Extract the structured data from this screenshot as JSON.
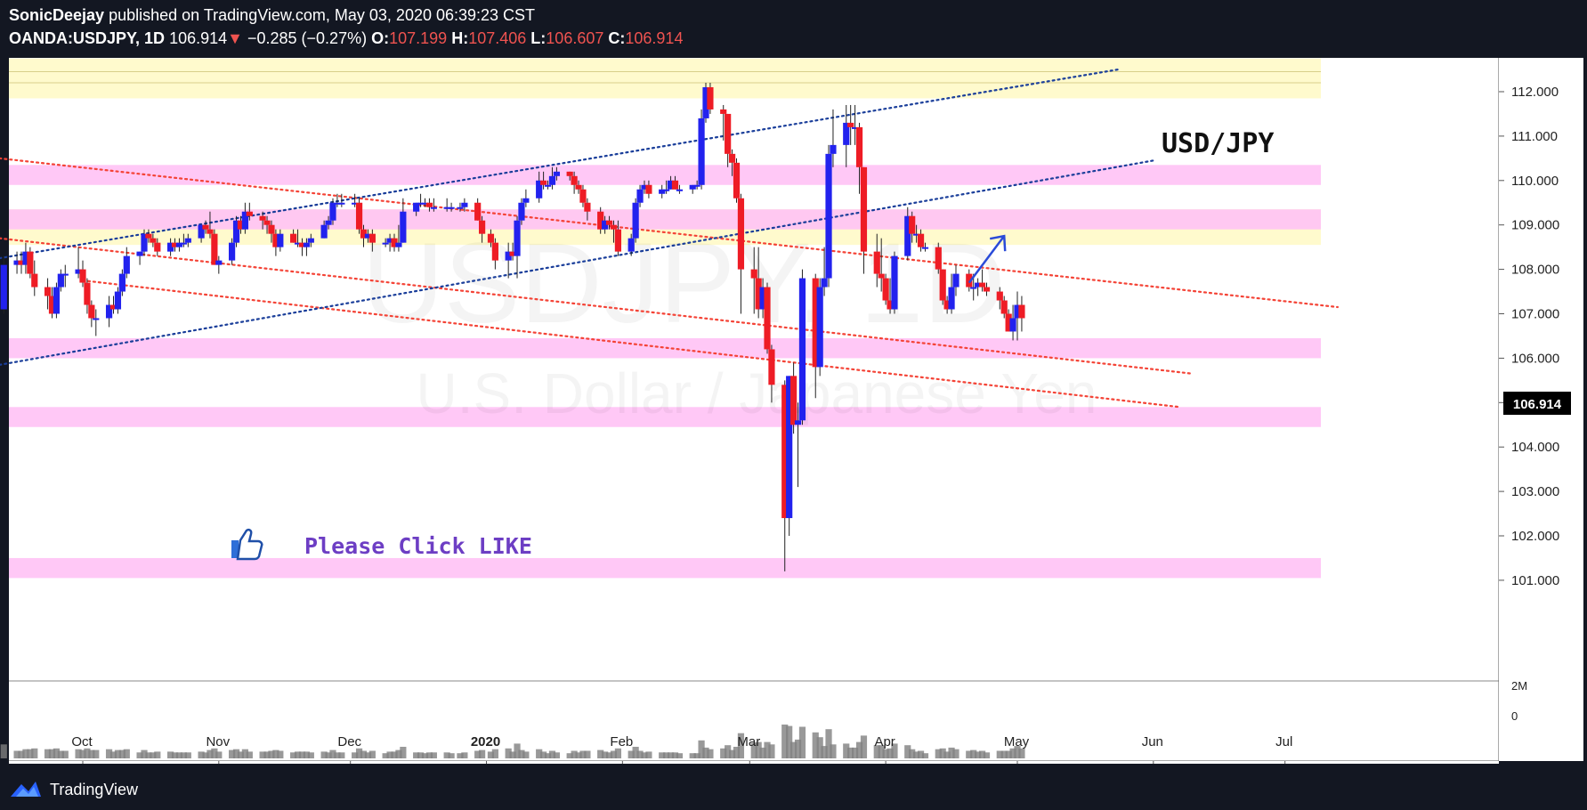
{
  "header": {
    "author": "SonicDeejay",
    "published_text": "published on TradingView.com, May 03, 2020 06:39:23 CST",
    "symbol": "OANDA:USDJPY, 1D",
    "last": "106.914",
    "change_arrow": "▼",
    "change": "−0.285 (−0.27%)",
    "o_label": "O:",
    "o_value": "107.199",
    "h_label": "H:",
    "h_value": "107.406",
    "l_label": "L:",
    "l_value": "106.607",
    "c_label": "C:",
    "c_value": "106.914"
  },
  "annotations": {
    "pair_label": "USD/JPY",
    "like_text": "Please Click LIKE"
  },
  "watermark": {
    "symbol": "USDJPY, 1D",
    "name": "U.S. Dollar / Japanese Yen"
  },
  "footer": {
    "brand": "TradingView"
  },
  "colors": {
    "background": "#131722",
    "chart_bg": "#ffffff",
    "up": "#2222ee",
    "down": "#ee1c25",
    "pink_zone": "#ffc2f5",
    "yellow_zone": "#fff9c4",
    "red_trend": "#f44336",
    "blue_trend": "#1a3e9a",
    "price_tag_bg": "#000000",
    "like_text": "#6d3ec4"
  },
  "chart_data": {
    "type": "candlestick",
    "title": "",
    "price_axis": {
      "ticks": [
        "112.000",
        "111.000",
        "110.000",
        "109.000",
        "108.000",
        "107.000",
        "106.000",
        "105.000",
        "104.000",
        "103.000",
        "102.000",
        "101.000"
      ],
      "range": [
        100.5,
        112.75
      ],
      "last_price_label": "106.914"
    },
    "time_axis": {
      "labels": [
        "Oct",
        "Nov",
        "Dec",
        "2020",
        "Feb",
        "Mar",
        "Apr",
        "May",
        "Jun",
        "Jul"
      ]
    },
    "volume_axis": {
      "labels": [
        "2M",
        "0"
      ]
    },
    "zones": [
      {
        "type": "yellow",
        "from": 111.85,
        "to": 112.75
      },
      {
        "type": "pink",
        "from": 109.9,
        "to": 110.35
      },
      {
        "type": "yellow",
        "from": 108.55,
        "to": 109.35
      },
      {
        "type": "pink",
        "from": 108.9,
        "to": 109.35
      },
      {
        "type": "pink",
        "from": 106.0,
        "to": 106.45
      },
      {
        "type": "pink",
        "from": 104.45,
        "to": 104.9
      },
      {
        "type": "pink",
        "from": 101.05,
        "to": 101.5
      }
    ],
    "trendlines": [
      {
        "color": "red",
        "from": [
          "2019-09-12",
          110.5
        ],
        "to": [
          "2020-07-13",
          107.15
        ]
      },
      {
        "color": "red",
        "from": [
          "2019-09-12",
          108.7
        ],
        "to": [
          "2020-06-10",
          105.65
        ]
      },
      {
        "color": "red",
        "from": [
          "2019-10-01",
          107.75
        ],
        "to": [
          "2020-06-07",
          104.9
        ]
      },
      {
        "color": "blue",
        "from": [
          "2019-09-12",
          108.25
        ],
        "to": [
          "2020-05-24",
          112.5
        ]
      },
      {
        "color": "blue",
        "from": [
          "2019-09-12",
          105.85
        ],
        "to": [
          "2020-06-01",
          110.45
        ]
      }
    ],
    "arrow": {
      "from": [
        "2020-04-20",
        107.7
      ],
      "to": [
        "2020-04-28",
        108.75
      ]
    },
    "candles": [
      [
        "2019-09-13",
        107.1,
        108.3,
        107.0,
        108.1
      ],
      [
        "2019-09-16",
        108.1,
        108.4,
        107.9,
        108.2
      ],
      [
        "2019-09-17",
        108.2,
        108.4,
        107.9,
        108.1
      ],
      [
        "2019-09-18",
        108.1,
        108.6,
        107.9,
        108.4
      ],
      [
        "2019-09-19",
        108.4,
        108.5,
        107.8,
        107.9
      ],
      [
        "2019-09-20",
        107.9,
        108.2,
        107.4,
        107.6
      ],
      [
        "2019-09-23",
        107.6,
        107.8,
        107.1,
        107.4
      ],
      [
        "2019-09-24",
        107.4,
        107.6,
        106.9,
        107.0
      ],
      [
        "2019-09-25",
        107.0,
        107.7,
        106.9,
        107.6
      ],
      [
        "2019-09-26",
        107.6,
        108.0,
        107.5,
        107.9
      ],
      [
        "2019-09-27",
        107.9,
        108.1,
        107.6,
        107.9
      ],
      [
        "2019-09-30",
        107.9,
        108.5,
        107.8,
        108.0
      ],
      [
        "2019-10-01",
        108.0,
        108.2,
        107.6,
        107.7
      ],
      [
        "2019-10-02",
        107.7,
        107.8,
        107.0,
        107.2
      ],
      [
        "2019-10-03",
        107.2,
        107.3,
        106.7,
        106.9
      ],
      [
        "2019-10-04",
        106.9,
        107.1,
        106.5,
        106.9
      ],
      [
        "2019-10-07",
        106.9,
        107.4,
        106.7,
        107.2
      ],
      [
        "2019-10-08",
        107.2,
        107.4,
        107.0,
        107.1
      ],
      [
        "2019-10-09",
        107.1,
        107.6,
        107.0,
        107.5
      ],
      [
        "2019-10-10",
        107.5,
        108.0,
        107.4,
        107.9
      ],
      [
        "2019-10-11",
        107.9,
        108.5,
        107.8,
        108.3
      ],
      [
        "2019-10-14",
        108.3,
        108.4,
        108.1,
        108.4
      ],
      [
        "2019-10-15",
        108.4,
        108.9,
        108.3,
        108.8
      ],
      [
        "2019-10-16",
        108.8,
        108.9,
        108.6,
        108.7
      ],
      [
        "2019-10-17",
        108.7,
        108.8,
        108.5,
        108.6
      ],
      [
        "2019-10-18",
        108.6,
        108.7,
        108.3,
        108.4
      ],
      [
        "2019-10-21",
        108.4,
        108.7,
        108.3,
        108.6
      ],
      [
        "2019-10-22",
        108.6,
        108.7,
        108.4,
        108.5
      ],
      [
        "2019-10-23",
        108.5,
        108.7,
        108.4,
        108.6
      ],
      [
        "2019-10-24",
        108.6,
        108.8,
        108.5,
        108.6
      ],
      [
        "2019-10-25",
        108.6,
        108.8,
        108.5,
        108.7
      ],
      [
        "2019-10-28",
        108.7,
        109.0,
        108.6,
        109.0
      ],
      [
        "2019-10-29",
        109.0,
        109.1,
        108.8,
        108.9
      ],
      [
        "2019-10-30",
        108.9,
        109.3,
        108.7,
        108.8
      ],
      [
        "2019-10-31",
        108.8,
        108.9,
        108.1,
        108.1
      ],
      [
        "2019-11-01",
        108.1,
        108.3,
        107.9,
        108.2
      ],
      [
        "2019-11-04",
        108.2,
        108.7,
        108.1,
        108.6
      ],
      [
        "2019-11-05",
        108.6,
        109.2,
        108.5,
        109.1
      ],
      [
        "2019-11-06",
        109.1,
        109.2,
        108.8,
        108.9
      ],
      [
        "2019-11-07",
        108.9,
        109.5,
        108.8,
        109.3
      ],
      [
        "2019-11-08",
        109.3,
        109.5,
        109.1,
        109.2
      ],
      [
        "2019-11-11",
        109.2,
        109.3,
        108.9,
        109.1
      ],
      [
        "2019-11-12",
        109.1,
        109.2,
        108.8,
        109.0
      ],
      [
        "2019-11-13",
        109.0,
        109.1,
        108.6,
        108.8
      ],
      [
        "2019-11-14",
        108.8,
        108.9,
        108.3,
        108.5
      ],
      [
        "2019-11-15",
        108.5,
        108.9,
        108.4,
        108.8
      ],
      [
        "2019-11-18",
        108.8,
        108.9,
        108.6,
        108.6
      ],
      [
        "2019-11-19",
        108.6,
        108.9,
        108.5,
        108.6
      ],
      [
        "2019-11-20",
        108.6,
        108.7,
        108.3,
        108.5
      ],
      [
        "2019-11-21",
        108.5,
        108.7,
        108.3,
        108.6
      ],
      [
        "2019-11-22",
        108.6,
        108.8,
        108.5,
        108.7
      ],
      [
        "2019-11-25",
        108.7,
        109.1,
        108.7,
        109.0
      ],
      [
        "2019-11-26",
        109.0,
        109.2,
        108.9,
        109.1
      ],
      [
        "2019-11-27",
        109.1,
        109.6,
        109.0,
        109.5
      ],
      [
        "2019-11-28",
        109.5,
        109.7,
        109.4,
        109.5
      ],
      [
        "2019-11-29",
        109.5,
        109.7,
        109.4,
        109.5
      ],
      [
        "2019-12-02",
        109.5,
        109.7,
        109.4,
        109.5
      ],
      [
        "2019-12-03",
        109.5,
        109.6,
        108.8,
        108.9
      ],
      [
        "2019-12-04",
        108.9,
        109.0,
        108.5,
        108.7
      ],
      [
        "2019-12-05",
        108.7,
        108.9,
        108.6,
        108.8
      ],
      [
        "2019-12-06",
        108.8,
        108.9,
        108.4,
        108.6
      ],
      [
        "2019-12-09",
        108.6,
        108.7,
        108.5,
        108.6
      ],
      [
        "2019-12-10",
        108.6,
        108.8,
        108.4,
        108.7
      ],
      [
        "2019-12-11",
        108.7,
        108.8,
        108.4,
        108.5
      ],
      [
        "2019-12-12",
        108.5,
        109.0,
        108.4,
        108.6
      ],
      [
        "2019-12-13",
        108.6,
        109.6,
        108.6,
        109.3
      ],
      [
        "2019-12-16",
        109.3,
        109.5,
        109.2,
        109.5
      ],
      [
        "2019-12-17",
        109.5,
        109.7,
        109.4,
        109.5
      ],
      [
        "2019-12-18",
        109.5,
        109.6,
        109.4,
        109.5
      ],
      [
        "2019-12-19",
        109.5,
        109.6,
        109.3,
        109.4
      ],
      [
        "2019-12-20",
        109.4,
        109.6,
        109.3,
        109.4
      ],
      [
        "2019-12-23",
        109.4,
        109.6,
        109.3,
        109.4
      ],
      [
        "2019-12-24",
        109.4,
        109.5,
        109.3,
        109.4
      ],
      [
        "2019-12-26",
        109.4,
        109.5,
        109.3,
        109.4
      ],
      [
        "2019-12-27",
        109.4,
        109.6,
        109.3,
        109.5
      ],
      [
        "2019-12-30",
        109.5,
        109.6,
        109.1,
        109.1
      ],
      [
        "2019-12-31",
        109.1,
        109.2,
        108.6,
        108.8
      ],
      [
        "2020-01-02",
        108.8,
        108.9,
        108.5,
        108.6
      ],
      [
        "2020-01-03",
        108.6,
        108.7,
        108.0,
        108.2
      ],
      [
        "2020-01-06",
        108.2,
        108.6,
        107.8,
        108.4
      ],
      [
        "2020-01-07",
        108.4,
        108.6,
        108.2,
        108.3
      ],
      [
        "2020-01-08",
        108.3,
        109.2,
        107.8,
        109.1
      ],
      [
        "2020-01-09",
        109.1,
        109.6,
        109.0,
        109.5
      ],
      [
        "2020-01-10",
        109.5,
        109.8,
        109.4,
        109.6
      ],
      [
        "2020-01-13",
        109.6,
        110.2,
        109.5,
        110.0
      ],
      [
        "2020-01-14",
        110.0,
        110.2,
        109.8,
        109.9
      ],
      [
        "2020-01-15",
        109.9,
        110.0,
        109.8,
        109.9
      ],
      [
        "2020-01-16",
        109.9,
        110.3,
        109.8,
        110.1
      ],
      [
        "2020-01-17",
        110.1,
        110.3,
        110.0,
        110.2
      ],
      [
        "2020-01-20",
        110.2,
        110.2,
        110.0,
        110.1
      ],
      [
        "2020-01-21",
        110.1,
        110.2,
        109.7,
        109.9
      ],
      [
        "2020-01-22",
        109.9,
        110.0,
        109.7,
        109.8
      ],
      [
        "2020-01-23",
        109.8,
        109.9,
        109.4,
        109.5
      ],
      [
        "2020-01-24",
        109.5,
        109.6,
        109.1,
        109.3
      ],
      [
        "2020-01-27",
        109.3,
        109.4,
        108.8,
        108.9
      ],
      [
        "2020-01-28",
        108.9,
        109.2,
        108.8,
        109.1
      ],
      [
        "2020-01-29",
        109.1,
        109.2,
        108.9,
        109.0
      ],
      [
        "2020-01-30",
        109.0,
        109.1,
        108.6,
        108.9
      ],
      [
        "2020-01-31",
        108.9,
        109.1,
        108.3,
        108.4
      ],
      [
        "2020-02-03",
        108.4,
        108.8,
        108.3,
        108.7
      ],
      [
        "2020-02-04",
        108.7,
        109.6,
        108.6,
        109.5
      ],
      [
        "2020-02-05",
        109.5,
        109.9,
        109.4,
        109.8
      ],
      [
        "2020-02-06",
        109.8,
        110.0,
        109.7,
        109.9
      ],
      [
        "2020-02-07",
        109.9,
        110.0,
        109.6,
        109.7
      ],
      [
        "2020-02-10",
        109.7,
        109.9,
        109.6,
        109.8
      ],
      [
        "2020-02-11",
        109.8,
        110.0,
        109.7,
        109.8
      ],
      [
        "2020-02-12",
        109.8,
        110.1,
        109.8,
        110.0
      ],
      [
        "2020-02-13",
        110.0,
        110.1,
        109.8,
        109.8
      ],
      [
        "2020-02-14",
        109.8,
        109.9,
        109.7,
        109.8
      ],
      [
        "2020-02-17",
        109.8,
        109.9,
        109.7,
        109.9
      ],
      [
        "2020-02-18",
        109.9,
        110.0,
        109.8,
        109.9
      ],
      [
        "2020-02-19",
        109.9,
        111.6,
        109.8,
        111.4
      ],
      [
        "2020-02-20",
        111.4,
        112.2,
        111.3,
        112.1
      ],
      [
        "2020-02-21",
        112.1,
        112.2,
        111.5,
        111.6
      ],
      [
        "2020-02-24",
        111.6,
        111.7,
        110.9,
        111.5
      ],
      [
        "2020-02-25",
        111.5,
        111.5,
        110.3,
        110.6
      ],
      [
        "2020-02-26",
        110.6,
        110.7,
        110.1,
        110.4
      ],
      [
        "2020-02-27",
        110.4,
        110.5,
        109.5,
        109.6
      ],
      [
        "2020-02-28",
        109.6,
        109.7,
        107.0,
        108.0
      ],
      [
        "2020-03-02",
        108.0,
        108.5,
        107.0,
        107.8
      ],
      [
        "2020-03-03",
        107.8,
        108.5,
        106.9,
        107.1
      ],
      [
        "2020-03-04",
        107.1,
        107.8,
        106.9,
        107.6
      ],
      [
        "2020-03-05",
        107.6,
        107.7,
        106.1,
        106.2
      ],
      [
        "2020-03-06",
        106.2,
        106.3,
        105.0,
        105.4
      ],
      [
        "2020-03-09",
        105.4,
        105.5,
        101.2,
        102.4
      ],
      [
        "2020-03-10",
        102.4,
        105.6,
        102.0,
        105.6
      ],
      [
        "2020-03-11",
        105.6,
        105.9,
        104.3,
        104.5
      ],
      [
        "2020-03-12",
        104.5,
        105.0,
        103.1,
        104.6
      ],
      [
        "2020-03-13",
        104.6,
        108.0,
        104.5,
        107.8
      ],
      [
        "2020-03-16",
        107.8,
        107.9,
        105.1,
        105.8
      ],
      [
        "2020-03-17",
        105.8,
        107.8,
        105.6,
        107.6
      ],
      [
        "2020-03-18",
        107.6,
        108.5,
        107.4,
        107.8
      ],
      [
        "2020-03-19",
        107.8,
        110.8,
        107.6,
        110.6
      ],
      [
        "2020-03-20",
        110.6,
        111.6,
        110.3,
        110.8
      ],
      [
        "2020-03-23",
        110.8,
        111.7,
        110.3,
        111.3
      ],
      [
        "2020-03-24",
        111.3,
        111.7,
        110.8,
        111.2
      ],
      [
        "2020-03-25",
        111.2,
        111.7,
        110.8,
        111.2
      ],
      [
        "2020-03-26",
        111.2,
        111.3,
        109.7,
        110.3
      ],
      [
        "2020-03-27",
        110.3,
        110.3,
        107.9,
        108.4
      ],
      [
        "2020-03-30",
        108.4,
        108.8,
        107.6,
        107.9
      ],
      [
        "2020-03-31",
        107.9,
        108.7,
        107.5,
        107.8
      ],
      [
        "2020-04-01",
        107.8,
        107.9,
        107.2,
        107.3
      ],
      [
        "2020-04-02",
        107.3,
        107.8,
        107.0,
        107.1
      ],
      [
        "2020-04-03",
        107.1,
        108.4,
        107.0,
        108.3
      ],
      [
        "2020-04-06",
        108.3,
        109.4,
        108.2,
        109.2
      ],
      [
        "2020-04-07",
        109.2,
        109.3,
        108.6,
        108.8
      ],
      [
        "2020-04-08",
        108.8,
        109.0,
        108.6,
        108.8
      ],
      [
        "2020-04-09",
        108.8,
        108.9,
        108.4,
        108.5
      ],
      [
        "2020-04-10",
        108.5,
        108.6,
        108.4,
        108.5
      ],
      [
        "2020-04-13",
        108.5,
        108.6,
        107.9,
        108.0
      ],
      [
        "2020-04-14",
        108.0,
        108.0,
        107.2,
        107.3
      ],
      [
        "2020-04-15",
        107.3,
        107.4,
        107.0,
        107.1
      ],
      [
        "2020-04-16",
        107.1,
        107.9,
        107.0,
        107.6
      ],
      [
        "2020-04-17",
        107.6,
        108.1,
        107.4,
        107.9
      ],
      [
        "2020-04-20",
        107.9,
        108.0,
        107.5,
        107.6
      ],
      [
        "2020-04-21",
        107.6,
        107.9,
        107.3,
        107.6
      ],
      [
        "2020-04-22",
        107.6,
        107.8,
        107.4,
        107.7
      ],
      [
        "2020-04-23",
        107.7,
        108.0,
        107.5,
        107.6
      ],
      [
        "2020-04-24",
        107.6,
        107.7,
        107.4,
        107.5
      ],
      [
        "2020-04-27",
        107.5,
        107.6,
        107.1,
        107.3
      ],
      [
        "2020-04-28",
        107.3,
        107.4,
        106.9,
        107.0
      ],
      [
        "2020-04-29",
        107.0,
        107.1,
        106.6,
        106.6
      ],
      [
        "2020-04-30",
        106.6,
        107.2,
        106.4,
        106.9
      ],
      [
        "2020-05-01",
        106.9,
        107.5,
        106.4,
        107.2
      ],
      [
        "2020-05-02",
        107.2,
        107.4,
        106.6,
        106.9
      ]
    ]
  }
}
